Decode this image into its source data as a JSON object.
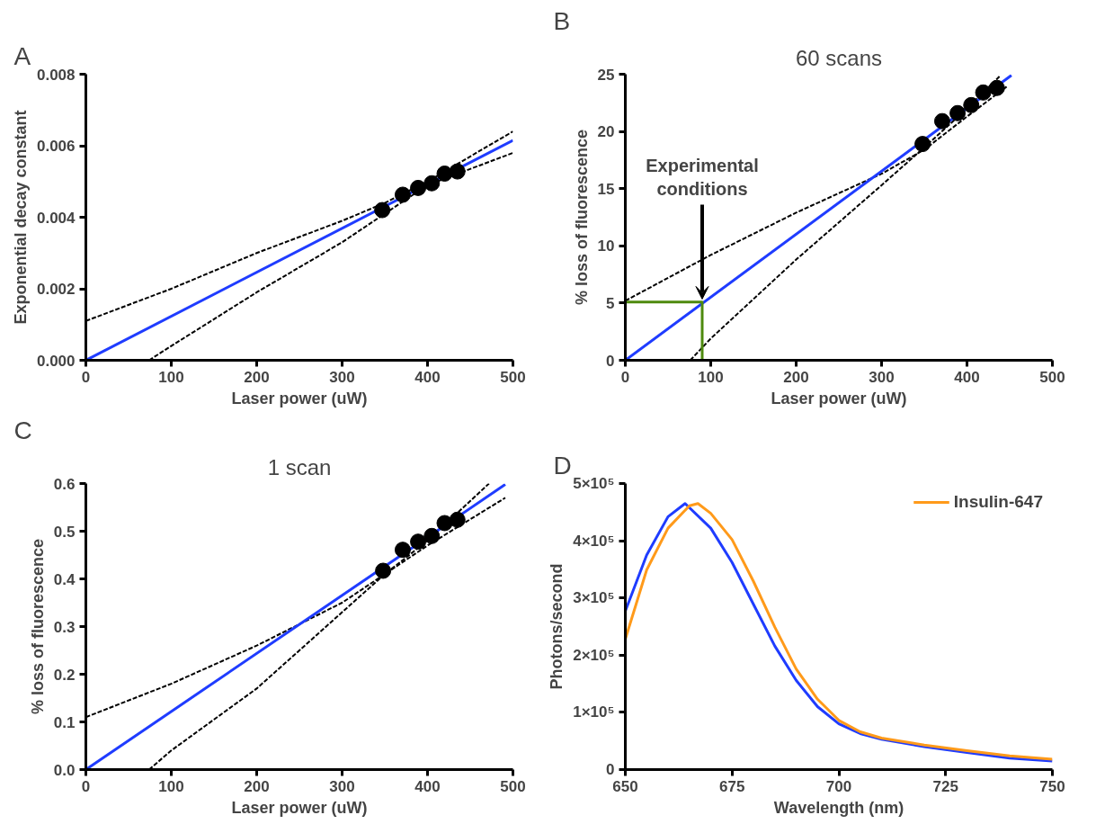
{
  "chart_data": [
    {
      "type": "line",
      "xlabel": "Laser power (uW)",
      "ylabel": "Exponential decay constant",
      "annotations": [
        "A"
      ],
      "xlim": [
        0,
        500
      ],
      "ylim": [
        0,
        0.008
      ],
      "xticks": [
        0,
        100,
        200,
        300,
        400,
        500
      ],
      "yticks": [
        {
          "value": 0,
          "label": "0.000"
        },
        {
          "value": 0.002,
          "label": "0.002"
        },
        {
          "value": 0.004,
          "label": "0.004"
        },
        {
          "value": 0.006,
          "label": "0.006"
        },
        {
          "value": 0.008,
          "label": "0.008"
        }
      ],
      "series": [
        {
          "color": "#000000",
          "line_style": "dashed",
          "x": [
            0,
            100,
            200,
            300,
            350,
            400,
            500
          ],
          "values": [
            0.0011,
            0.002,
            0.003,
            0.0039,
            0.0044,
            0.005,
            0.0064
          ]
        },
        {
          "color": "#000000",
          "line_style": "dashed",
          "x": [
            74,
            100,
            200,
            300,
            350,
            400,
            500
          ],
          "values": [
            0,
            0.0004,
            0.0019,
            0.0033,
            0.0041,
            0.0049,
            0.0058
          ]
        },
        {
          "color": "#1f3cff",
          "line_style": "solid",
          "x": [
            0,
            500
          ],
          "values": [
            0,
            0.00615
          ]
        },
        {
          "type": "scatter",
          "color": "#000000",
          "marker": "circle",
          "x": [
            347,
            371,
            389,
            405,
            420,
            435
          ],
          "values": [
            0.0042,
            0.00463,
            0.00482,
            0.00495,
            0.00522,
            0.00528
          ]
        }
      ]
    },
    {
      "type": "line",
      "title": "60 scans",
      "xlabel": "Laser power (uW)",
      "ylabel": "% loss of fluorescence",
      "annotations": [
        "B",
        {
          "text": "Experimental conditions",
          "x": 90,
          "y": 5.1
        }
      ],
      "xlim": [
        0,
        500
      ],
      "ylim": [
        0,
        25
      ],
      "xticks": [
        0,
        100,
        200,
        300,
        400,
        500
      ],
      "yticks": [
        0,
        5,
        10,
        15,
        20,
        25
      ],
      "series": [
        {
          "color": "#000000",
          "line_style": "dashed",
          "x": [
            0,
            100,
            200,
            300,
            350,
            400,
            448
          ],
          "values": [
            5.2,
            9.2,
            12.9,
            16.3,
            18.4,
            21.3,
            24.0
          ]
        },
        {
          "color": "#000000",
          "line_style": "dashed",
          "x": [
            76,
            100,
            200,
            300,
            350,
            400,
            438
          ],
          "values": [
            0,
            1.9,
            8.8,
            15.3,
            18.6,
            22.0,
            24.8
          ]
        },
        {
          "color": "#1f3cff",
          "line_style": "solid",
          "x": [
            0,
            452
          ],
          "values": [
            0,
            24.9
          ]
        },
        {
          "color": "#4e8a0e",
          "line_style": "solid",
          "x": [
            0,
            90,
            90
          ],
          "values": [
            5.1,
            5.1,
            0
          ]
        },
        {
          "type": "scatter",
          "color": "#000000",
          "marker": "circle",
          "x": [
            348,
            371,
            389,
            405,
            419,
            435
          ],
          "values": [
            18.9,
            20.9,
            21.6,
            22.3,
            23.4,
            23.8
          ]
        }
      ]
    },
    {
      "type": "line",
      "title": "1 scan",
      "xlabel": "Laser power (uW)",
      "ylabel": "% loss of fluorescence",
      "annotations": [
        "C"
      ],
      "xlim": [
        0,
        500
      ],
      "ylim": [
        0,
        0.6
      ],
      "xticks": [
        0,
        100,
        200,
        300,
        400,
        500
      ],
      "yticks": [
        {
          "value": 0,
          "label": "0.0"
        },
        0.1,
        0.2,
        0.3,
        0.4,
        0.5,
        0.6
      ],
      "series": [
        {
          "color": "#000000",
          "line_style": "dashed",
          "x": [
            0,
            100,
            200,
            300,
            350,
            400,
            491
          ],
          "values": [
            0.11,
            0.18,
            0.26,
            0.35,
            0.41,
            0.47,
            0.57
          ]
        },
        {
          "color": "#000000",
          "line_style": "dashed",
          "x": [
            74,
            100,
            200,
            300,
            350,
            400,
            472
          ],
          "values": [
            0,
            0.04,
            0.17,
            0.33,
            0.41,
            0.48,
            0.6
          ]
        },
        {
          "color": "#1f3cff",
          "line_style": "solid",
          "x": [
            0,
            491
          ],
          "values": [
            0,
            0.598
          ]
        },
        {
          "type": "scatter",
          "color": "#000000",
          "marker": "circle",
          "x": [
            348,
            371,
            389,
            405,
            420,
            435
          ],
          "values": [
            0.417,
            0.461,
            0.478,
            0.49,
            0.517,
            0.524
          ]
        }
      ]
    },
    {
      "type": "line",
      "xlabel": "Wavelength (nm)",
      "ylabel": "Photons/second",
      "annotations": [
        "D"
      ],
      "legend": "top right",
      "xlim": [
        650,
        750
      ],
      "ylim": [
        0,
        500000
      ],
      "xticks": [
        650,
        675,
        700,
        725,
        750
      ],
      "yticks": [
        0,
        {
          "value": 100000,
          "label": "1×10⁵"
        },
        {
          "value": 200000,
          "label": "2×10⁵"
        },
        {
          "value": 300000,
          "label": "3×10⁵"
        },
        {
          "value": 400000,
          "label": "4×10⁵"
        },
        {
          "value": 500000,
          "label": "5×10⁵"
        }
      ],
      "series": [
        {
          "color": "#1f3cff",
          "line_style": "solid",
          "x": [
            650,
            655,
            660,
            664,
            670,
            675,
            680,
            685,
            690,
            695,
            700,
            705,
            710,
            720,
            730,
            740,
            750
          ],
          "values": [
            277000,
            375000,
            442000,
            465000,
            422000,
            362000,
            289000,
            216000,
            156000,
            110000,
            80000,
            63000,
            53000,
            40000,
            30000,
            20000,
            15000
          ]
        },
        {
          "name": "Insulin-647",
          "color": "#ff9a1a",
          "line_style": "solid",
          "x": [
            650,
            655,
            660,
            665,
            667,
            670,
            675,
            680,
            685,
            690,
            695,
            700,
            705,
            710,
            720,
            730,
            740,
            750
          ],
          "values": [
            228000,
            349000,
            422000,
            461000,
            465000,
            448000,
            402000,
            329000,
            249000,
            176000,
            123000,
            86000,
            66000,
            55000,
            43000,
            33000,
            24000,
            18000
          ]
        }
      ]
    }
  ]
}
